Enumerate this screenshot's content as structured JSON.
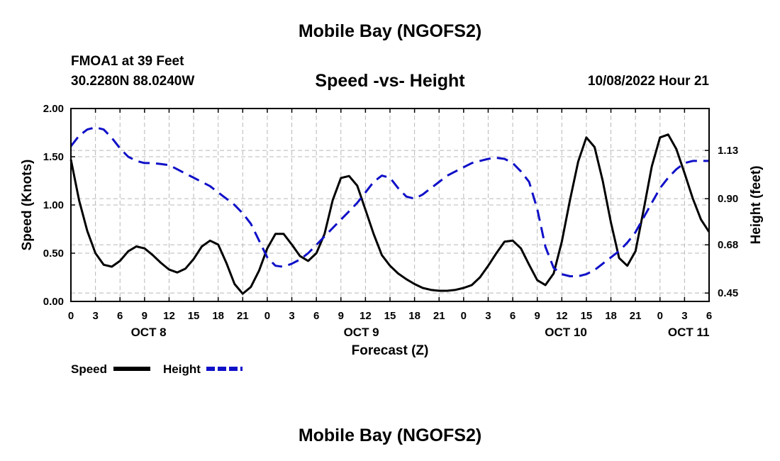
{
  "header": {
    "title": "Mobile Bay (NGOFS2)",
    "station": "FMOA1 at 39 Feet",
    "coords": "30.2280N  88.0240W",
    "chart_title": "Speed -vs- Height",
    "datetime": "10/08/2022 Hour 21"
  },
  "footer": {
    "title": "Mobile Bay (NGOFS2)"
  },
  "colors": {
    "speed": "#000000",
    "height": "#1010c8",
    "grid": "#b8b8b8"
  },
  "chart_data": {
    "type": "line",
    "title": "Speed -vs- Height",
    "xlabel": "Forecast (Z)",
    "ylabel": "Speed (Knots)",
    "y2label": "Height (feet)",
    "xlim": [
      0,
      78
    ],
    "ylim": [
      0,
      2.0
    ],
    "y2lim": [
      0.41,
      1.33
    ],
    "x_ticks": [
      0,
      3,
      6,
      9,
      12,
      15,
      18,
      21,
      24,
      27,
      30,
      33,
      36,
      39,
      42,
      45,
      48,
      51,
      54,
      57,
      60,
      63,
      66,
      69,
      72,
      75,
      78
    ],
    "x_tick_labels": [
      "0",
      "3",
      "6",
      "9",
      "12",
      "15",
      "18",
      "21",
      "0",
      "3",
      "6",
      "9",
      "12",
      "15",
      "18",
      "21",
      "0",
      "3",
      "6",
      "9",
      "12",
      "15",
      "18",
      "21",
      "0",
      "3",
      "6"
    ],
    "y_ticks": [
      "0.00",
      "0.50",
      "1.00",
      "1.50",
      "2.00"
    ],
    "y2_ticks": [
      "0.45",
      "0.68",
      "0.90",
      "1.13"
    ],
    "day_labels": [
      {
        "label": "OCT 8",
        "x": 9.5
      },
      {
        "label": "OCT 9",
        "x": 35.5
      },
      {
        "label": "OCT 10",
        "x": 60.5
      },
      {
        "label": "OCT 11",
        "x": 75.5
      }
    ],
    "legend": {
      "position": "bottom-left",
      "entries": [
        "Speed",
        "Height"
      ]
    },
    "series": [
      {
        "name": "Speed",
        "axis": "left",
        "x": [
          0,
          1,
          2,
          3,
          4,
          5,
          6,
          7,
          8,
          9,
          10,
          11,
          12,
          13,
          14,
          15,
          16,
          17,
          18,
          19,
          20,
          21,
          22,
          23,
          24,
          25,
          26,
          27,
          28,
          29,
          30,
          31,
          32,
          33,
          34,
          35,
          36,
          37,
          38,
          39,
          40,
          41,
          42,
          43,
          44,
          45,
          46,
          47,
          48,
          49,
          50,
          51,
          52,
          53,
          54,
          55,
          56,
          57,
          58,
          59,
          60,
          61,
          62,
          63,
          64,
          65,
          66,
          67,
          68,
          69,
          70,
          71,
          72,
          73,
          74,
          75,
          76,
          77,
          78
        ],
        "values": [
          1.47,
          1.05,
          0.73,
          0.5,
          0.38,
          0.36,
          0.42,
          0.52,
          0.57,
          0.55,
          0.48,
          0.4,
          0.33,
          0.3,
          0.34,
          0.44,
          0.57,
          0.63,
          0.59,
          0.4,
          0.18,
          0.08,
          0.15,
          0.32,
          0.55,
          0.7,
          0.7,
          0.59,
          0.47,
          0.42,
          0.5,
          0.7,
          1.05,
          1.28,
          1.3,
          1.2,
          0.95,
          0.7,
          0.48,
          0.37,
          0.29,
          0.23,
          0.18,
          0.14,
          0.12,
          0.11,
          0.11,
          0.12,
          0.14,
          0.17,
          0.25,
          0.37,
          0.5,
          0.62,
          0.63,
          0.55,
          0.38,
          0.22,
          0.17,
          0.29,
          0.62,
          1.05,
          1.45,
          1.7,
          1.6,
          1.25,
          0.82,
          0.45,
          0.37,
          0.52,
          0.95,
          1.4,
          1.7,
          1.73,
          1.58,
          1.33,
          1.07,
          0.85,
          0.72
        ]
      },
      {
        "name": "Height",
        "axis": "right",
        "x": [
          0,
          1,
          2,
          3,
          4,
          5,
          6,
          7,
          8,
          9,
          10,
          11,
          12,
          13,
          14,
          15,
          16,
          17,
          18,
          19,
          20,
          21,
          22,
          23,
          24,
          25,
          26,
          27,
          28,
          29,
          30,
          31,
          32,
          33,
          34,
          35,
          36,
          37,
          38,
          39,
          40,
          41,
          42,
          43,
          44,
          45,
          46,
          47,
          48,
          49,
          50,
          51,
          52,
          53,
          54,
          55,
          56,
          57,
          58,
          59,
          60,
          61,
          62,
          63,
          64,
          65,
          66,
          67,
          68,
          69,
          70,
          71,
          72,
          73,
          74,
          75,
          76,
          77,
          78
        ],
        "values": [
          1.15,
          1.2,
          1.23,
          1.24,
          1.23,
          1.19,
          1.14,
          1.1,
          1.08,
          1.07,
          1.07,
          1.065,
          1.06,
          1.04,
          1.02,
          1.0,
          0.98,
          0.96,
          0.93,
          0.9,
          0.87,
          0.83,
          0.78,
          0.7,
          0.62,
          0.58,
          0.575,
          0.59,
          0.61,
          0.64,
          0.68,
          0.72,
          0.76,
          0.8,
          0.84,
          0.88,
          0.93,
          0.98,
          1.01,
          1.0,
          0.95,
          0.91,
          0.9,
          0.92,
          0.95,
          0.98,
          1.01,
          1.03,
          1.05,
          1.07,
          1.08,
          1.09,
          1.095,
          1.09,
          1.07,
          1.03,
          0.98,
          0.85,
          0.67,
          0.57,
          0.54,
          0.53,
          0.53,
          0.54,
          0.56,
          0.59,
          0.62,
          0.65,
          0.69,
          0.74,
          0.81,
          0.88,
          0.95,
          1.0,
          1.04,
          1.07,
          1.08,
          1.08,
          1.08
        ]
      }
    ]
  }
}
